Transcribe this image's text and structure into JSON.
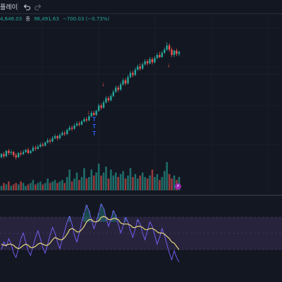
{
  "toolbar": {
    "replay_label": "플레이",
    "undo_icon": "undo-icon",
    "redo_icon": "redo-icon"
  },
  "legend": {
    "prefix_value": "4,646.03",
    "close_key": "종",
    "close_value": "96,491.63",
    "change": "−700.03 (−0.73%)"
  },
  "event_marker": {
    "icon": "lightning-icon",
    "glyph": "⚡"
  },
  "colors": {
    "background": "#131722",
    "up": "#26a69a",
    "down": "#ef5350",
    "signal_buy": "#2962ff",
    "signal_sell": "#ef5350",
    "osc_fast": "#7b61ff",
    "osc_slow": "#e6d97a",
    "osc_band": "#2a2540",
    "grid": "#1e222d"
  },
  "chart_data": {
    "type": "candlestick",
    "candles": [
      [
        236,
        239,
        240,
        235
      ],
      [
        239,
        237,
        241,
        235
      ],
      [
        237,
        242,
        243,
        236
      ],
      [
        242,
        240,
        244,
        238
      ],
      [
        240,
        241,
        243,
        238
      ],
      [
        241,
        238,
        242,
        236
      ],
      [
        238,
        236,
        240,
        234
      ],
      [
        236,
        240,
        241,
        235
      ],
      [
        240,
        239,
        242,
        237
      ],
      [
        239,
        241,
        243,
        238
      ],
      [
        241,
        243,
        244,
        240
      ],
      [
        243,
        240,
        245,
        239
      ],
      [
        240,
        242,
        243,
        239
      ],
      [
        242,
        245,
        247,
        241
      ],
      [
        245,
        244,
        247,
        242
      ],
      [
        244,
        246,
        248,
        243
      ],
      [
        246,
        248,
        250,
        245
      ],
      [
        248,
        247,
        250,
        246
      ],
      [
        247,
        250,
        251,
        246
      ],
      [
        250,
        252,
        254,
        249
      ],
      [
        252,
        251,
        254,
        249
      ],
      [
        251,
        254,
        256,
        250
      ],
      [
        254,
        256,
        258,
        253
      ],
      [
        256,
        254,
        257,
        252
      ],
      [
        254,
        257,
        259,
        253
      ],
      [
        257,
        259,
        261,
        256
      ],
      [
        259,
        258,
        261,
        256
      ],
      [
        258,
        262,
        263,
        257
      ],
      [
        262,
        264,
        266,
        261
      ],
      [
        264,
        263,
        266,
        261
      ],
      [
        263,
        266,
        268,
        262
      ],
      [
        266,
        268,
        270,
        265
      ],
      [
        268,
        267,
        270,
        265
      ],
      [
        267,
        270,
        271,
        266
      ],
      [
        270,
        272,
        274,
        269
      ],
      [
        272,
        271,
        274,
        269
      ],
      [
        271,
        275,
        276,
        270
      ],
      [
        275,
        278,
        280,
        274
      ],
      [
        278,
        276,
        280,
        275
      ],
      [
        276,
        280,
        281,
        275
      ],
      [
        280,
        285,
        287,
        279
      ],
      [
        285,
        283,
        287,
        281
      ],
      [
        283,
        288,
        290,
        282
      ],
      [
        288,
        292,
        294,
        287
      ],
      [
        292,
        290,
        294,
        288
      ],
      [
        290,
        294,
        296,
        289
      ],
      [
        294,
        298,
        300,
        293
      ],
      [
        298,
        302,
        304,
        297
      ],
      [
        302,
        300,
        304,
        298
      ],
      [
        300,
        305,
        307,
        299
      ],
      [
        305,
        309,
        311,
        304
      ],
      [
        309,
        306,
        311,
        304
      ],
      [
        306,
        312,
        314,
        305
      ],
      [
        312,
        316,
        318,
        311
      ],
      [
        316,
        314,
        318,
        312
      ],
      [
        314,
        319,
        321,
        313
      ],
      [
        319,
        322,
        324,
        318
      ],
      [
        322,
        320,
        325,
        318
      ],
      [
        320,
        324,
        326,
        319
      ],
      [
        324,
        327,
        329,
        323
      ],
      [
        327,
        325,
        329,
        323
      ],
      [
        325,
        329,
        331,
        324
      ],
      [
        329,
        326,
        331,
        324
      ],
      [
        326,
        330,
        332,
        325
      ],
      [
        330,
        333,
        335,
        329
      ],
      [
        333,
        331,
        336,
        330
      ],
      [
        331,
        335,
        337,
        330
      ],
      [
        335,
        338,
        340,
        334
      ],
      [
        338,
        342,
        345,
        337
      ],
      [
        342,
        338,
        344,
        336
      ],
      [
        338,
        333,
        340,
        331
      ],
      [
        333,
        337,
        338,
        331
      ],
      [
        337,
        334,
        339,
        332
      ],
      [
        334,
        336,
        337,
        332
      ]
    ],
    "buy_signal_label": "T",
    "sell_signal_label": "↓",
    "volume": [
      3,
      5,
      4,
      6,
      3,
      4,
      5,
      4,
      6,
      5,
      3,
      4,
      5,
      7,
      4,
      5,
      6,
      4,
      5,
      8,
      5,
      6,
      7,
      5,
      6,
      7,
      5,
      9,
      14,
      6,
      8,
      12,
      7,
      9,
      15,
      8,
      9,
      14,
      10,
      12,
      18,
      10,
      12,
      16,
      8,
      14,
      10,
      12,
      9,
      11,
      13,
      8,
      10,
      15,
      9,
      11,
      8,
      10,
      12,
      9,
      8,
      10,
      14,
      9,
      11,
      7,
      9,
      13,
      19,
      11,
      8,
      10,
      7,
      9
    ],
    "osc_fast": [
      45,
      52,
      48,
      55,
      50,
      42,
      38,
      46,
      55,
      60,
      52,
      44,
      40,
      48,
      56,
      62,
      55,
      47,
      42,
      50,
      58,
      65,
      60,
      52,
      46,
      54,
      62,
      70,
      75,
      68,
      58,
      52,
      60,
      70,
      78,
      85,
      80,
      72,
      64,
      70,
      78,
      86,
      82,
      74,
      66,
      72,
      80,
      76,
      68,
      60,
      66,
      74,
      70,
      62,
      56,
      64,
      72,
      68,
      60,
      54,
      62,
      70,
      66,
      58,
      50,
      56,
      64,
      58,
      50,
      42,
      36,
      44,
      38,
      34
    ],
    "osc_slow": [
      50,
      49,
      49,
      50,
      50,
      49,
      47,
      46,
      47,
      49,
      50,
      49,
      47,
      47,
      48,
      50,
      51,
      50,
      49,
      49,
      51,
      54,
      56,
      55,
      54,
      54,
      56,
      59,
      63,
      64,
      63,
      61,
      61,
      63,
      66,
      70,
      72,
      72,
      70,
      70,
      71,
      74,
      75,
      74,
      72,
      72,
      73,
      73,
      72,
      69,
      68,
      68,
      68,
      67,
      65,
      65,
      66,
      66,
      65,
      63,
      63,
      64,
      64,
      63,
      61,
      60,
      60,
      59,
      57,
      55,
      52,
      51,
      48,
      45
    ]
  }
}
